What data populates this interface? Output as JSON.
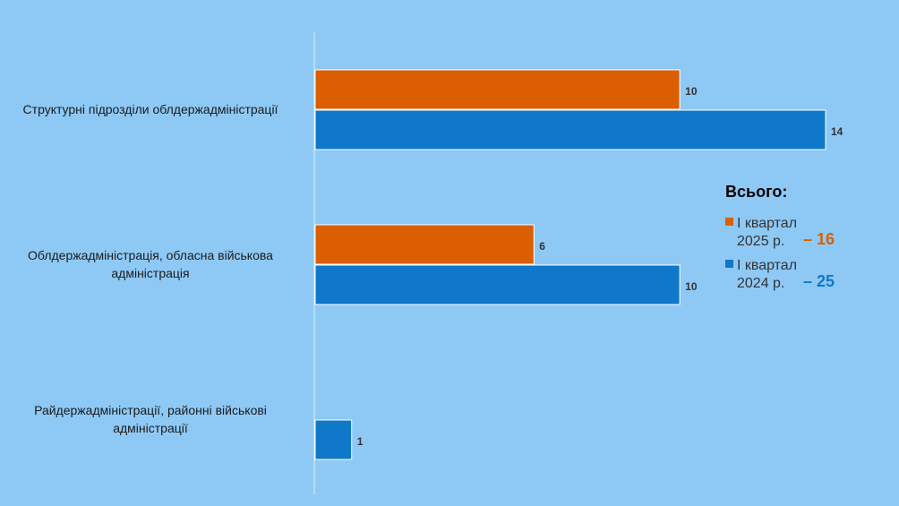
{
  "chart_data": {
    "type": "bar",
    "orientation": "horizontal",
    "categories": [
      "Структурні підрозділи облдержадміністрації",
      "Облдержадміністрація, обласна військова адміністрація",
      "Райдержадміністрації, районні військові адміністрації"
    ],
    "series": [
      {
        "name": "І квартал 2025 р.",
        "color": "#db5e00",
        "values": [
          10,
          6,
          null
        ],
        "total": {
          "value": 16,
          "label": "– 16"
        }
      },
      {
        "name": "І квартал 2024 р.",
        "color": "#0f78c9",
        "values": [
          14,
          10,
          1
        ],
        "total": {
          "value": 25,
          "label": "– 25"
        }
      }
    ],
    "legend_title": "Всього:",
    "xlim": [
      0,
      14
    ],
    "grid": false
  }
}
